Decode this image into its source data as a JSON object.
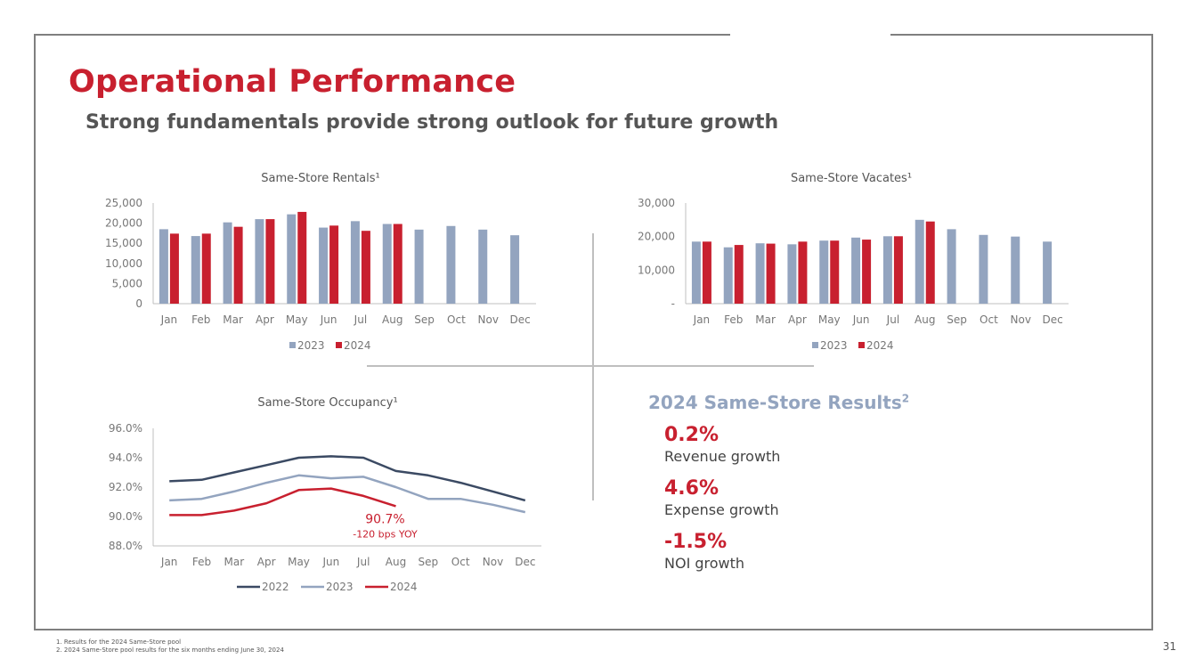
{
  "title": "Operational Performance",
  "subtitle": "Strong fundamentals provide strong outlook for future growth",
  "colors": {
    "red": "#c8202f",
    "blue": "#93a4bf",
    "navy": "#3b4a63"
  },
  "chart_data": [
    {
      "type": "bar",
      "title": "Same-Store Rentals¹",
      "categories": [
        "Jan",
        "Feb",
        "Mar",
        "Apr",
        "May",
        "Jun",
        "Jul",
        "Aug",
        "Sep",
        "Oct",
        "Nov",
        "Dec"
      ],
      "series": [
        {
          "name": "2023",
          "color": "#93a4bf",
          "values": [
            18500,
            16800,
            20200,
            21000,
            22200,
            18900,
            20500,
            19800,
            18400,
            19300,
            18400,
            17000
          ]
        },
        {
          "name": "2024",
          "color": "#c8202f",
          "values": [
            17400,
            17400,
            19100,
            21000,
            22800,
            19400,
            18100,
            19800,
            null,
            null,
            null,
            null
          ]
        }
      ],
      "ylim": [
        0,
        25000
      ],
      "yticks": [
        0,
        5000,
        10000,
        15000,
        20000,
        25000
      ],
      "ytick_labels": [
        "0",
        "5,000",
        "10,000",
        "15,000",
        "20,000",
        "25,000"
      ],
      "xlabel": "",
      "ylabel": "",
      "legend": "bottom"
    },
    {
      "type": "bar",
      "title": "Same-Store Vacates¹",
      "categories": [
        "Jan",
        "Feb",
        "Mar",
        "Apr",
        "May",
        "Jun",
        "Jul",
        "Aug",
        "Sep",
        "Oct",
        "Nov",
        "Dec"
      ],
      "series": [
        {
          "name": "2023",
          "color": "#93a4bf",
          "values": [
            18500,
            16800,
            18000,
            17700,
            18800,
            19700,
            20100,
            25000,
            22200,
            20500,
            20000,
            18500
          ]
        },
        {
          "name": "2024",
          "color": "#c8202f",
          "values": [
            18500,
            17500,
            17900,
            18500,
            18800,
            19100,
            20100,
            24500,
            null,
            null,
            null,
            null
          ]
        }
      ],
      "ylim": [
        0,
        30000
      ],
      "yticks": [
        0,
        10000,
        20000,
        30000
      ],
      "ytick_labels": [
        "-",
        "10,000",
        "20,000",
        "30,000"
      ],
      "xlabel": "",
      "ylabel": "",
      "legend": "bottom"
    },
    {
      "type": "line",
      "title": "Same-Store Occupancy¹",
      "categories": [
        "Jan",
        "Feb",
        "Mar",
        "Apr",
        "May",
        "Jun",
        "Jul",
        "Aug",
        "Sep",
        "Oct",
        "Nov",
        "Dec"
      ],
      "series": [
        {
          "name": "2022",
          "color": "#3b4a63",
          "values": [
            92.4,
            92.5,
            93.0,
            93.5,
            94.0,
            94.1,
            94.0,
            93.1,
            92.8,
            92.3,
            91.7,
            91.1
          ]
        },
        {
          "name": "2023",
          "color": "#93a4bf",
          "values": [
            91.1,
            91.2,
            91.7,
            92.3,
            92.8,
            92.6,
            92.7,
            92.0,
            91.2,
            91.2,
            90.8,
            90.3
          ]
        },
        {
          "name": "2024",
          "color": "#c8202f",
          "values": [
            90.1,
            90.1,
            90.4,
            90.9,
            91.8,
            91.9,
            91.4,
            90.7,
            null,
            null,
            null,
            null
          ]
        }
      ],
      "ylim": [
        88.0,
        96.0
      ],
      "yticks": [
        88.0,
        90.0,
        92.0,
        94.0,
        96.0
      ],
      "ytick_labels": [
        "88.0%",
        "90.0%",
        "92.0%",
        "94.0%",
        "96.0%"
      ],
      "annotation": {
        "value": "90.7%",
        "note": "-120 bps YOY"
      },
      "xlabel": "",
      "ylabel": "",
      "legend": "bottom"
    }
  ],
  "results": {
    "title": "2024 Same-Store Results",
    "title_sup": "2",
    "metrics": [
      {
        "value": "0.2%",
        "label": "Revenue growth"
      },
      {
        "value": "4.6%",
        "label": "Expense growth"
      },
      {
        "value": "-1.5%",
        "label": "NOI growth"
      }
    ]
  },
  "footnotes": [
    "1.   Results for the 2024 Same-Store pool",
    "2.   2024 Same-Store pool results for the six months ending June 30, 2024"
  ],
  "page_number": "31"
}
